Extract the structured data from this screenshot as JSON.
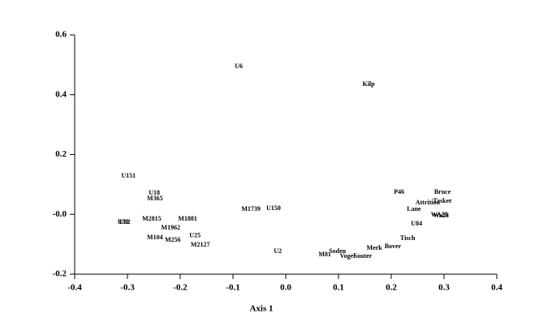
{
  "chart_data": {
    "type": "scatter",
    "x_label": "Axis 1",
    "point_labels": [
      "U6",
      "Kilp",
      "U151",
      "U18",
      "M365",
      "P46",
      "Bruce",
      "Tasker",
      "Attrition",
      "Lane",
      "M1739",
      "U150",
      "Wa28",
      "WA25",
      "U50",
      "U82",
      "M2815",
      "M1881",
      "U84",
      "M1962",
      "U25",
      "Tisch",
      "M104",
      "M256",
      "M2127",
      "Merk",
      "Bover",
      "U2",
      "Soden",
      "M81",
      "Vogel",
      "Souter"
    ],
    "x": [
      -0.089,
      0.157,
      -0.298,
      -0.249,
      -0.248,
      0.215,
      0.297,
      0.297,
      0.269,
      0.243,
      -0.066,
      -0.023,
      0.294,
      0.291,
      -0.308,
      -0.305,
      -0.254,
      -0.186,
      0.248,
      -0.218,
      -0.172,
      0.231,
      -0.248,
      -0.214,
      -0.162,
      0.168,
      0.203,
      -0.015,
      0.098,
      0.074,
      0.117,
      0.146
    ],
    "values": [
      0.494,
      0.434,
      0.127,
      0.071,
      0.052,
      0.073,
      0.073,
      0.043,
      0.038,
      0.016,
      0.016,
      0.019,
      -0.005,
      -0.003,
      -0.027,
      -0.027,
      -0.016,
      -0.016,
      -0.033,
      -0.046,
      -0.071,
      -0.081,
      -0.079,
      -0.087,
      -0.103,
      -0.114,
      -0.108,
      -0.125,
      -0.125,
      -0.136,
      -0.141,
      -0.141
    ],
    "xlim": [
      -0.4,
      0.4
    ],
    "ylim": [
      -0.2,
      0.6
    ],
    "xticks": [
      -0.4,
      -0.3,
      -0.2,
      -0.1,
      {
        "value": 0,
        "label": "0.0"
      },
      0.1,
      0.2,
      0.3,
      0.4
    ],
    "yticks": [
      -0.2,
      {
        "value": 0,
        "label": "-0.0"
      },
      0.2,
      0.4,
      0.6
    ]
  }
}
